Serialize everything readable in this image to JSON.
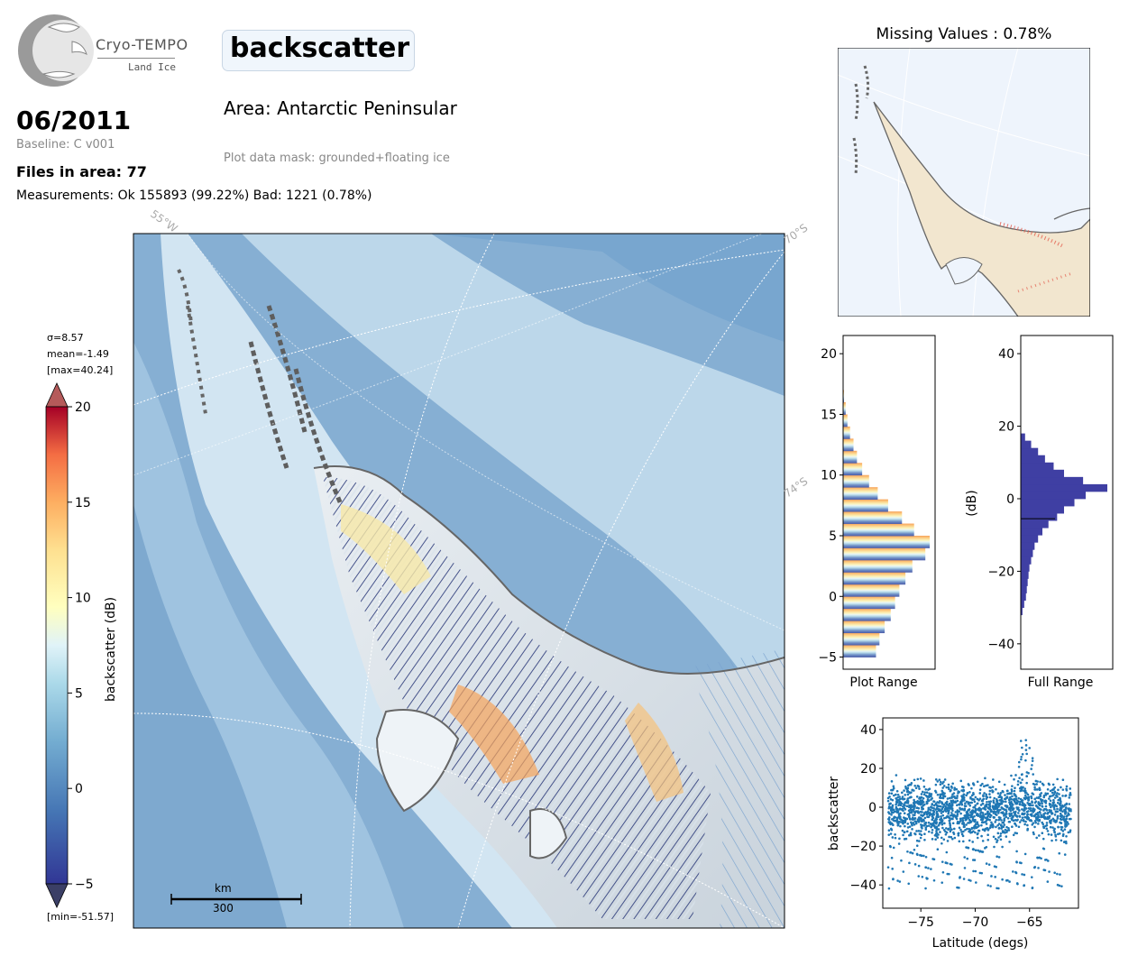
{
  "header": {
    "logo_text": "Cryo-TEMPO",
    "logo_sub": "Land Ice",
    "title": "backscatter",
    "date": "06/2011",
    "baseline": "Baseline: C v001",
    "files": "Files in area: 77",
    "measurements": "Measurements: Ok 155893 (99.22%) Bad: 1221 (0.78%)",
    "area": "Area: Antarctic Peninsular",
    "mask": "Plot data mask: grounded+floating ice",
    "missing": "Missing Values : 0.78%"
  },
  "map": {
    "grid_labels": [
      "55°W",
      "70°S",
      "74°S"
    ],
    "scale_unit": "km",
    "scale_value": "300"
  },
  "colorbar": {
    "label": "backscatter (dB)",
    "stats": [
      "σ=8.57",
      "mean=-1.49",
      "[max=40.24]"
    ],
    "min_label": "[min=-51.57]",
    "ticks": [
      20,
      15,
      10,
      5,
      0,
      -5
    ],
    "range": [
      -5,
      20
    ]
  },
  "chart_data": [
    {
      "type": "bar",
      "title": "",
      "xlabel": "Plot Range",
      "ylabel": "",
      "orientation": "horizontal",
      "ylim": [
        -6,
        21.5
      ],
      "yticks": [
        20,
        15,
        10,
        5,
        0,
        -5
      ],
      "bins": [
        -5,
        -4,
        -3,
        -2,
        -1,
        0,
        1,
        2,
        3,
        4,
        5,
        6,
        7,
        8,
        9,
        10,
        11,
        12,
        13,
        14,
        15,
        16
      ],
      "values": [
        0.38,
        0.42,
        0.48,
        0.55,
        0.6,
        0.65,
        0.72,
        0.8,
        0.95,
        1.0,
        0.82,
        0.68,
        0.52,
        0.4,
        0.3,
        0.22,
        0.16,
        0.12,
        0.08,
        0.05,
        0.03,
        0.01
      ]
    },
    {
      "type": "bar",
      "title": "",
      "xlabel": "Full Range",
      "ylabel": "(dB)",
      "orientation": "horizontal",
      "ylim": [
        -47,
        45
      ],
      "yticks": [
        40,
        20,
        0,
        -20,
        -40
      ],
      "bins": [
        -32,
        -30,
        -28,
        -26,
        -24,
        -22,
        -20,
        -18,
        -16,
        -14,
        -12,
        -10,
        -8,
        -6,
        -4,
        -2,
        0,
        2,
        4,
        6,
        8,
        10,
        12,
        14,
        16
      ],
      "values": [
        0.02,
        0.04,
        0.06,
        0.07,
        0.08,
        0.09,
        0.1,
        0.12,
        0.14,
        0.16,
        0.2,
        0.25,
        0.32,
        0.42,
        0.5,
        0.62,
        0.75,
        1.0,
        0.72,
        0.5,
        0.38,
        0.28,
        0.2,
        0.12,
        0.05
      ]
    },
    {
      "type": "scatter",
      "title": "",
      "xlabel": "Latitude (degs)",
      "ylabel": "backscatter",
      "xlim": [
        -78.5,
        -60.5
      ],
      "ylim": [
        -52,
        46
      ],
      "xticks": [
        -75,
        -70,
        -65
      ],
      "yticks": [
        40,
        20,
        0,
        -20,
        -40
      ]
    }
  ]
}
